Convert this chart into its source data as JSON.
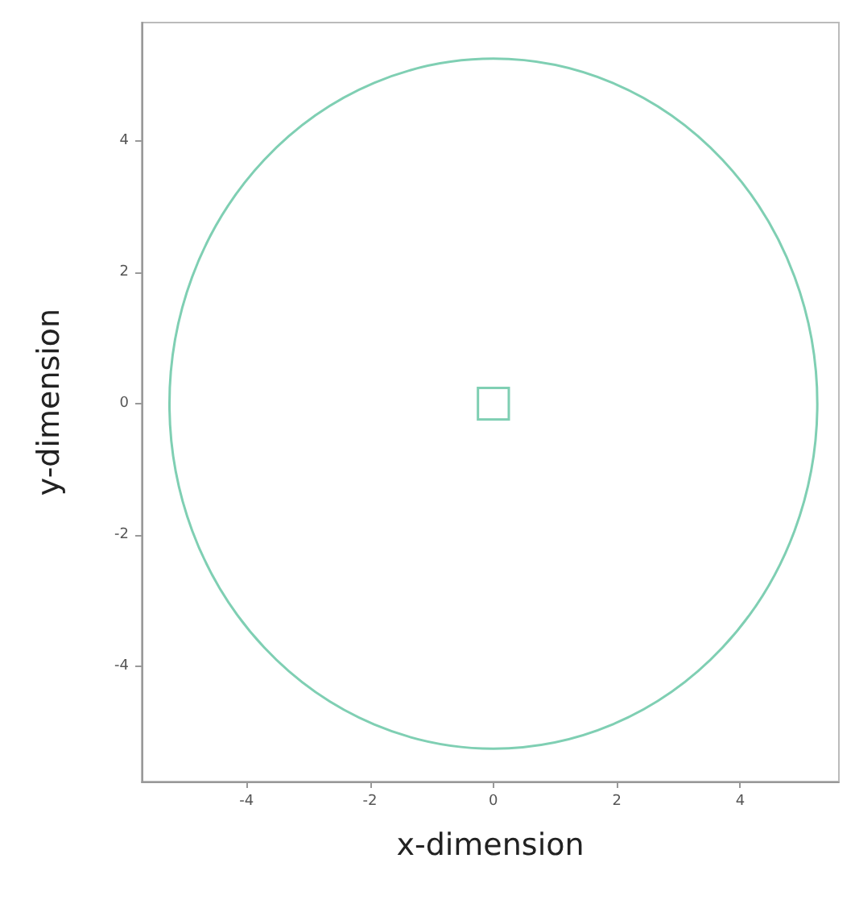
{
  "chart_data": {
    "type": "line",
    "xlabel": "x-dimension",
    "ylabel": "y-dimension",
    "xlim": [
      -5.7,
      5.6
    ],
    "ylim": [
      -5.75,
      5.8
    ],
    "xticks": [
      -4,
      -2,
      0,
      2,
      4
    ],
    "yticks": [
      -4,
      -2,
      0,
      2,
      4
    ]
  }
}
